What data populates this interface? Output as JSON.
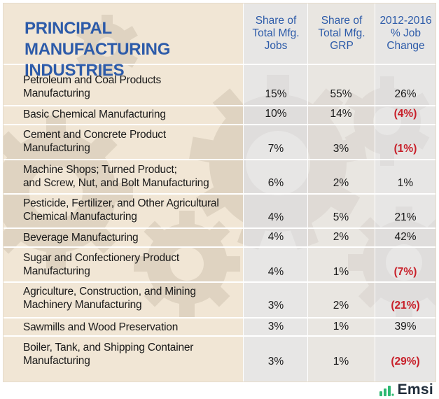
{
  "header": {
    "title": "PRINCIPAL MANUFACTURING INDUSTRIES",
    "col1": [
      "Share of",
      "Total Mfg.",
      "Jobs"
    ],
    "col2": [
      "Share of",
      "Total Mfg.",
      "GRP"
    ],
    "col3": [
      "2012-2016",
      "% Job",
      "Change"
    ]
  },
  "rows": [
    {
      "industry": [
        "Petroleum and Coal Products",
        "Manufacturing"
      ],
      "jobs": "15%",
      "grp": "55%",
      "change": "26%",
      "negative": false
    },
    {
      "industry": [
        "Basic Chemical Manufacturing"
      ],
      "jobs": "10%",
      "grp": "14%",
      "change": "(4%)",
      "negative": true
    },
    {
      "industry": [
        "Cement and Concrete Product",
        "Manufacturing"
      ],
      "jobs": "7%",
      "grp": "3%",
      "change": "(1%)",
      "negative": true
    },
    {
      "industry": [
        "Machine Shops; Turned Product;",
        "and Screw, Nut, and Bolt Manufacturing"
      ],
      "jobs": "6%",
      "grp": "2%",
      "change": "1%",
      "negative": false
    },
    {
      "industry": [
        "Pesticide, Fertilizer, and Other Agricultural",
        "Chemical Manufacturing"
      ],
      "jobs": "4%",
      "grp": "5%",
      "change": "21%",
      "negative": false
    },
    {
      "industry": [
        "Beverage Manufacturing"
      ],
      "jobs": "4%",
      "grp": "2%",
      "change": "42%",
      "negative": false
    },
    {
      "industry": [
        "Sugar and Confectionery Product",
        "Manufacturing"
      ],
      "jobs": "4%",
      "grp": "1%",
      "change": "(7%)",
      "negative": true
    },
    {
      "industry": [
        "Agriculture, Construction,  and Mining",
        "Machinery Manufacturing"
      ],
      "jobs": "3%",
      "grp": "2%",
      "change": "(21%)",
      "negative": true
    },
    {
      "industry": [
        "Sawmills and Wood Preservation"
      ],
      "jobs": "3%",
      "grp": "1%",
      "change": "39%",
      "negative": false
    },
    {
      "industry": [
        "Boiler, Tank, and Shipping Container",
        "Manufacturing"
      ],
      "jobs": "3%",
      "grp": "1%",
      "change": "(29%)",
      "negative": true
    }
  ],
  "logo": {
    "text": "Emsi",
    "color": "#1f2c3a",
    "accent": "#2eb872"
  },
  "colors": {
    "header_text": "#2d5ba9",
    "negative": "#c8202a",
    "background": "#f1e6d5"
  }
}
